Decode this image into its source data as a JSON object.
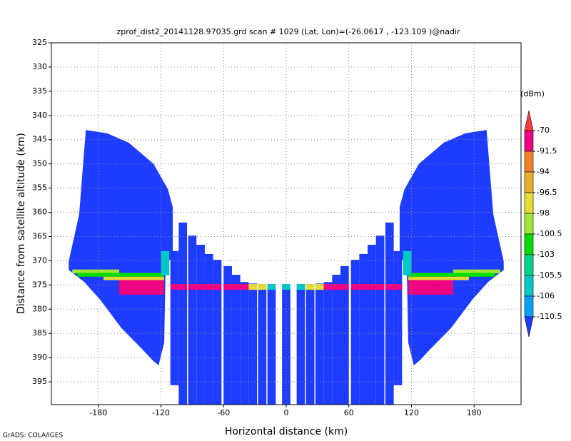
{
  "chart_data": {
    "type": "profile",
    "title": "zprof_dist2_20141128.97035.grd  scan # 1029  (Lat, Lon)=(-26.0617 , -123.109 )@nadir",
    "x_label": "Horizontal distance (km)",
    "y_label": "Distance from satellite altitude (km)",
    "credit": "GrADS: COLA/IGES",
    "colorbar_unit": "(dBm)",
    "xlim": [
      -225,
      225
    ],
    "ylim": [
      325,
      399.7
    ],
    "y_inverted": true,
    "grid": true,
    "xticks": [
      -180,
      -120,
      -60,
      0,
      60,
      120,
      180
    ],
    "yticks": [
      325,
      330,
      335,
      340,
      345,
      350,
      355,
      360,
      365,
      370,
      375,
      380,
      385,
      390,
      395
    ],
    "levels": [
      -70,
      -91.5,
      -94,
      -96.5,
      -98,
      -100.5,
      -103,
      -105.5,
      -106,
      -110.5
    ],
    "colors": [
      "#fa3c3c",
      "#f00082",
      "#f08228",
      "#e6af2d",
      "#e6dc32",
      "#a0e632",
      "#00dc00",
      "#00d28c",
      "#00c8c8",
      "#00a0ff",
      "#1e3cff"
    ],
    "surface_alt": [
      374.8,
      376
    ],
    "swaths": [
      {
        "x": [
          -192.0,
          -171.5,
          -151.0,
          -127.1,
          -113.4,
          -108.7,
          -108.7,
          -115.5,
          -116.9,
          -122.3,
          -127.8,
          -137.4,
          -157.9,
          -178.4,
          -193.4,
          -208.4,
          -208.4,
          -198.4
        ],
        "alt": [
          343.0,
          343.7,
          345.6,
          350.0,
          355.2,
          358.9,
          369.2,
          370.7,
          386.9,
          391.6,
          390.6,
          388.4,
          383.9,
          378.0,
          374.4,
          371.9,
          370.1,
          360.4
        ],
        "value": -115
      },
      {
        "x": [
          192.0,
          171.5,
          151.0,
          127.1,
          113.4,
          108.7,
          108.7,
          115.5,
          116.9,
          122.3,
          127.8,
          137.4,
          157.9,
          178.4,
          193.4,
          208.4,
          208.4,
          198.4
        ],
        "alt": [
          343.0,
          343.7,
          345.6,
          350.0,
          355.2,
          358.9,
          369.2,
          370.7,
          386.9,
          391.6,
          390.6,
          388.4,
          383.9,
          378.0,
          374.4,
          371.9,
          370.1,
          360.4
        ],
        "value": -115
      }
    ],
    "strips": [
      {
        "x0": -111,
        "x1": -103,
        "top": 368.0,
        "bottom": 395.7,
        "value": -115,
        "surface_value": -80
      },
      {
        "x0": -103,
        "x1": -95,
        "top": 362.1,
        "bottom": 399.7,
        "value": -115,
        "surface_value": -80
      },
      {
        "x0": -94,
        "x1": -86,
        "top": 364.8,
        "bottom": 399.7,
        "value": -115,
        "surface_value": -80
      },
      {
        "x0": -86,
        "x1": -78,
        "top": 366.7,
        "bottom": 399.7,
        "value": -115,
        "surface_value": -80
      },
      {
        "x0": -78,
        "x1": -70,
        "top": 368.6,
        "bottom": 399.7,
        "value": -115,
        "surface_value": -80
      },
      {
        "x0": -70,
        "x1": -62,
        "top": 369.8,
        "bottom": 399.7,
        "value": -115,
        "surface_value": -80
      },
      {
        "x0": -60,
        "x1": -52,
        "top": 371.1,
        "bottom": 399.7,
        "value": -115,
        "surface_value": -80
      },
      {
        "x0": -52,
        "x1": -44,
        "top": 372.9,
        "bottom": 399.7,
        "value": -115,
        "surface_value": -80
      },
      {
        "x0": -44,
        "x1": -36,
        "top": 374.4,
        "bottom": 399.7,
        "value": -115,
        "surface_value": -80
      },
      {
        "x0": -36,
        "x1": -28,
        "top": 374.7,
        "bottom": 399.7,
        "value": -115,
        "surface_value": -98
      },
      {
        "x0": -27,
        "x1": -19,
        "top": 375.1,
        "bottom": 399.7,
        "value": -115,
        "surface_value": -98
      },
      {
        "x0": -18,
        "x1": -10,
        "top": 375.8,
        "bottom": 399.7,
        "value": -115,
        "surface_value": -106
      },
      {
        "x0": -4,
        "x1": 4,
        "top": 375.5,
        "bottom": 399.7,
        "value": -115,
        "surface_value": -106
      },
      {
        "x0": 10,
        "x1": 18,
        "top": 375.8,
        "bottom": 399.7,
        "value": -115,
        "surface_value": -106
      },
      {
        "x0": 19,
        "x1": 27,
        "top": 375.1,
        "bottom": 399.7,
        "value": -115,
        "surface_value": -98
      },
      {
        "x0": 28,
        "x1": 36,
        "top": 374.7,
        "bottom": 399.7,
        "value": -115,
        "surface_value": -98
      },
      {
        "x0": 36,
        "x1": 44,
        "top": 374.4,
        "bottom": 399.7,
        "value": -115,
        "surface_value": -80
      },
      {
        "x0": 44,
        "x1": 52,
        "top": 372.9,
        "bottom": 399.7,
        "value": -115,
        "surface_value": -80
      },
      {
        "x0": 52,
        "x1": 60,
        "top": 371.1,
        "bottom": 399.7,
        "value": -115,
        "surface_value": -80
      },
      {
        "x0": 62,
        "x1": 70,
        "top": 369.8,
        "bottom": 399.7,
        "value": -115,
        "surface_value": -80
      },
      {
        "x0": 70,
        "x1": 78,
        "top": 368.6,
        "bottom": 399.7,
        "value": -115,
        "surface_value": -80
      },
      {
        "x0": 78,
        "x1": 86,
        "top": 366.7,
        "bottom": 399.7,
        "value": -115,
        "surface_value": -80
      },
      {
        "x0": 86,
        "x1": 94,
        "top": 364.8,
        "bottom": 399.7,
        "value": -115,
        "surface_value": -80
      },
      {
        "x0": 95,
        "x1": 103,
        "top": 362.1,
        "bottom": 399.7,
        "value": -115,
        "surface_value": -80
      },
      {
        "x0": 103,
        "x1": 111,
        "top": 368.0,
        "bottom": 395.7,
        "value": -115,
        "surface_value": -80
      }
    ],
    "echoes": [
      {
        "x0": -205,
        "x1": -160,
        "top": 371.8,
        "bottom": 372.6,
        "value": -100
      },
      {
        "x0": -200,
        "x1": -117,
        "top": 372.5,
        "bottom": 373.3,
        "value": -103
      },
      {
        "x0": -175,
        "x1": -117,
        "top": 373.3,
        "bottom": 374,
        "value": -98
      },
      {
        "x0": -160,
        "x1": -117,
        "top": 374,
        "bottom": 377,
        "value": -80
      },
      {
        "x0": -120,
        "x1": -112,
        "top": 368,
        "bottom": 373,
        "value": -106
      },
      {
        "x0": 160,
        "x1": 205,
        "top": 371.8,
        "bottom": 372.6,
        "value": -100
      },
      {
        "x0": 117,
        "x1": 200,
        "top": 372.5,
        "bottom": 373.3,
        "value": -103
      },
      {
        "x0": 117,
        "x1": 175,
        "top": 373.3,
        "bottom": 374,
        "value": -98
      },
      {
        "x0": 117,
        "x1": 160,
        "top": 374,
        "bottom": 377,
        "value": -80
      },
      {
        "x0": 112,
        "x1": 120,
        "top": 368,
        "bottom": 373,
        "value": -106
      }
    ]
  }
}
